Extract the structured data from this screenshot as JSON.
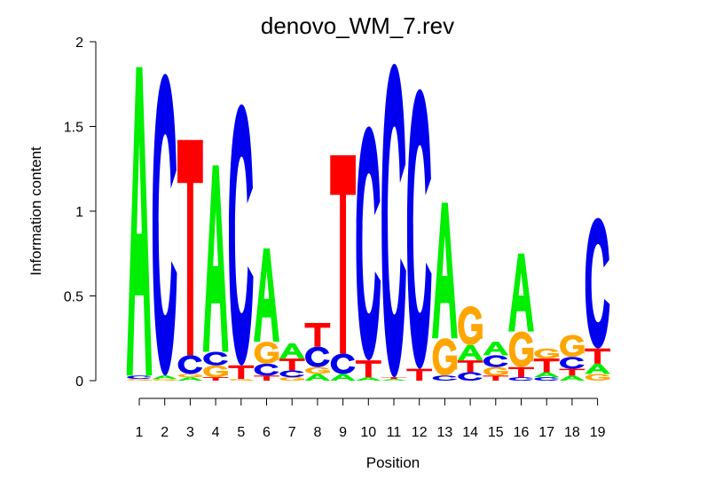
{
  "chart_data": {
    "type": "sequence-logo",
    "title": "denovo_WM_7.rev",
    "xlabel": "Position",
    "ylabel": "Information content",
    "ylim": [
      0,
      2
    ],
    "yticks": [
      "0",
      "0.5",
      "1",
      "1.5",
      "2"
    ],
    "categories": [
      "1",
      "2",
      "3",
      "4",
      "5",
      "6",
      "7",
      "8",
      "9",
      "10",
      "11",
      "12",
      "13",
      "14",
      "15",
      "16",
      "17",
      "18",
      "19"
    ],
    "colors": {
      "A": "#00ee00",
      "C": "#0000ee",
      "G": "#ffa500",
      "T": "#ff0000"
    },
    "positions": [
      [
        {
          "letter": "G",
          "height": 0.01
        },
        {
          "letter": "C",
          "height": 0.02
        },
        {
          "letter": "A",
          "height": 1.82
        }
      ],
      [
        {
          "letter": "G",
          "height": 0.01
        },
        {
          "letter": "A",
          "height": 0.02
        },
        {
          "letter": "C",
          "height": 1.78
        }
      ],
      [
        {
          "letter": "A",
          "height": 0.02
        },
        {
          "letter": "G",
          "height": 0.02
        },
        {
          "letter": "C",
          "height": 0.11
        },
        {
          "letter": "T",
          "height": 1.27
        }
      ],
      [
        {
          "letter": "T",
          "height": 0.02
        },
        {
          "letter": "G",
          "height": 0.07
        },
        {
          "letter": "C",
          "height": 0.08
        },
        {
          "letter": "A",
          "height": 1.1
        }
      ],
      [
        {
          "letter": "G",
          "height": 0.01
        },
        {
          "letter": "T",
          "height": 0.08
        },
        {
          "letter": "C",
          "height": 1.54
        }
      ],
      [
        {
          "letter": "T",
          "height": 0.03
        },
        {
          "letter": "C",
          "height": 0.07
        },
        {
          "letter": "G",
          "height": 0.13
        },
        {
          "letter": "A",
          "height": 0.55
        }
      ],
      [
        {
          "letter": "G",
          "height": 0.02
        },
        {
          "letter": "C",
          "height": 0.04
        },
        {
          "letter": "T",
          "height": 0.07
        },
        {
          "letter": "A",
          "height": 0.09
        }
      ],
      [
        {
          "letter": "A",
          "height": 0.04
        },
        {
          "letter": "G",
          "height": 0.04
        },
        {
          "letter": "C",
          "height": 0.12
        },
        {
          "letter": "T",
          "height": 0.14
        }
      ],
      [
        {
          "letter": "A",
          "height": 0.04
        },
        {
          "letter": "C",
          "height": 0.12
        },
        {
          "letter": "T",
          "height": 1.17
        }
      ],
      [
        {
          "letter": "A",
          "height": 0.02
        },
        {
          "letter": "T",
          "height": 0.1
        },
        {
          "letter": "C",
          "height": 1.38
        }
      ],
      [
        {
          "letter": "A",
          "height": 0.01
        },
        {
          "letter": "T",
          "height": 0.01
        },
        {
          "letter": "C",
          "height": 1.85
        }
      ],
      [
        {
          "letter": "T",
          "height": 0.07
        },
        {
          "letter": "C",
          "height": 1.65
        }
      ],
      [
        {
          "letter": "C",
          "height": 0.03
        },
        {
          "letter": "G",
          "height": 0.22
        },
        {
          "letter": "A",
          "height": 0.8
        }
      ],
      [
        {
          "letter": "C",
          "height": 0.05
        },
        {
          "letter": "T",
          "height": 0.07
        },
        {
          "letter": "A",
          "height": 0.09
        },
        {
          "letter": "G",
          "height": 0.23
        }
      ],
      [
        {
          "letter": "T",
          "height": 0.03
        },
        {
          "letter": "G",
          "height": 0.05
        },
        {
          "letter": "C",
          "height": 0.07
        },
        {
          "letter": "A",
          "height": 0.08
        }
      ],
      [
        {
          "letter": "C",
          "height": 0.02
        },
        {
          "letter": "T",
          "height": 0.06
        },
        {
          "letter": "G",
          "height": 0.21
        },
        {
          "letter": "A",
          "height": 0.46
        }
      ],
      [
        {
          "letter": "C",
          "height": 0.02
        },
        {
          "letter": "A",
          "height": 0.03
        },
        {
          "letter": "T",
          "height": 0.08
        },
        {
          "letter": "G",
          "height": 0.06
        }
      ],
      [
        {
          "letter": "A",
          "height": 0.03
        },
        {
          "letter": "T",
          "height": 0.04
        },
        {
          "letter": "C",
          "height": 0.07
        },
        {
          "letter": "G",
          "height": 0.13
        }
      ],
      [
        {
          "letter": "G",
          "height": 0.04
        },
        {
          "letter": "A",
          "height": 0.06
        },
        {
          "letter": "T",
          "height": 0.09
        },
        {
          "letter": "C",
          "height": 0.77
        }
      ]
    ]
  }
}
